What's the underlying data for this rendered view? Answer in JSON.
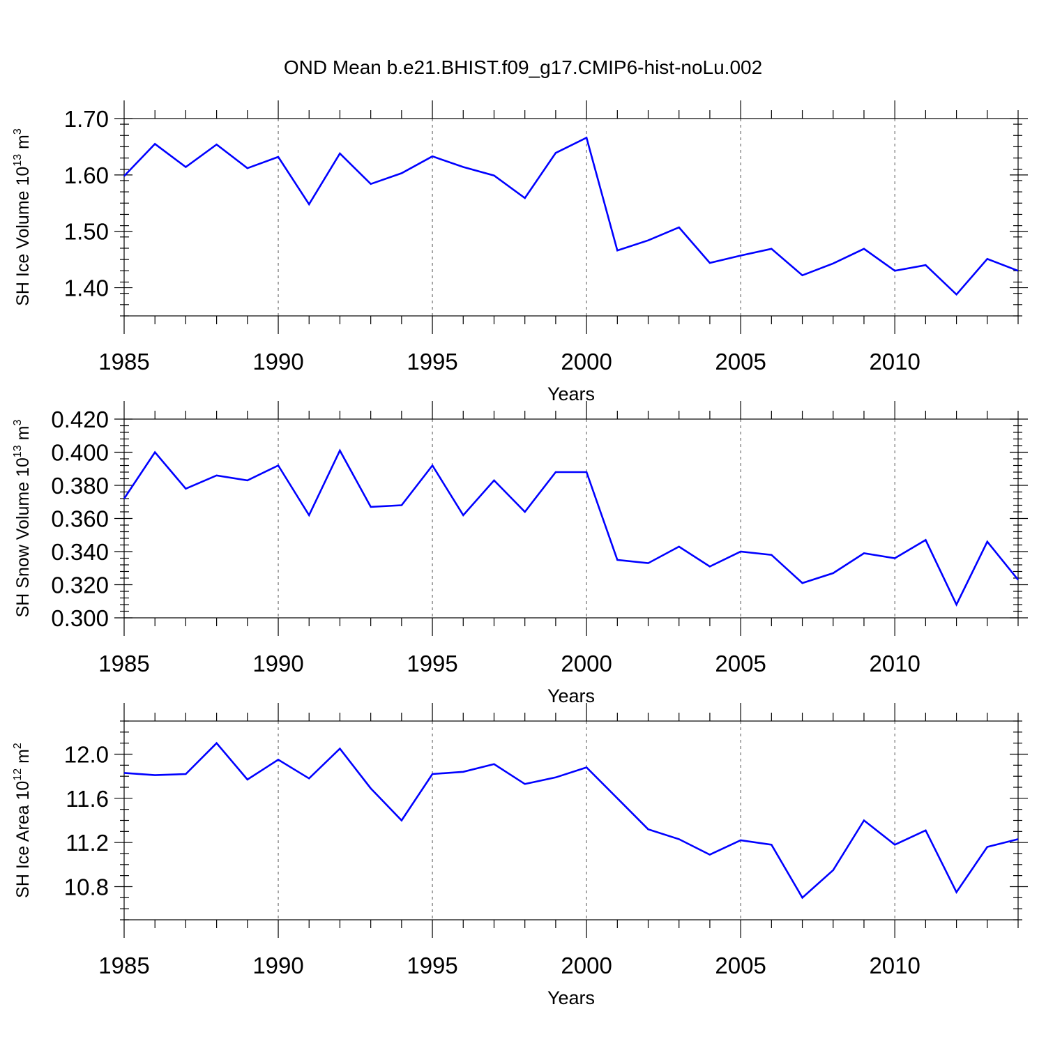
{
  "title": "OND Mean b.e21.BHIST.f09_g17.CMIP6-hist-noLu.002",
  "line_color": "#0000ff",
  "chart_data": [
    {
      "type": "line",
      "name": "ice-volume",
      "ylabel": {
        "text": "SH Ice Volume 10",
        "sup1": "13",
        "unit": " m",
        "sup2": "3"
      },
      "xlabel": "Years",
      "xlim": [
        1985,
        2014
      ],
      "ylim": [
        1.35,
        1.7
      ],
      "yticks": [
        1.4,
        1.5,
        1.6,
        1.7
      ],
      "ytick_labels": [
        "1.40",
        "1.50",
        "1.60",
        "1.70"
      ],
      "ytick_minor": 0.02,
      "xticks": [
        1985,
        1990,
        1995,
        2000,
        2005,
        2010
      ],
      "xtick_labels": [
        "1985",
        "1990",
        "1995",
        "2000",
        "2005",
        "2010"
      ],
      "grid": "vertical dashed at major x ticks",
      "x": [
        1985,
        1986,
        1987,
        1988,
        1989,
        1990,
        1991,
        1992,
        1993,
        1994,
        1995,
        1996,
        1997,
        1998,
        1999,
        2000,
        2001,
        2002,
        2003,
        2004,
        2005,
        2006,
        2007,
        2008,
        2009,
        2010,
        2011,
        2012,
        2013,
        2014
      ],
      "values": [
        1.598,
        1.655,
        1.614,
        1.654,
        1.612,
        1.632,
        1.548,
        1.638,
        1.584,
        1.603,
        1.633,
        1.614,
        1.599,
        1.559,
        1.639,
        1.666,
        1.466,
        1.484,
        1.507,
        1.444,
        1.457,
        1.469,
        1.422,
        1.443,
        1.469,
        1.43,
        1.44,
        1.388,
        1.451,
        1.43
      ]
    },
    {
      "type": "line",
      "name": "snow-volume",
      "ylabel": {
        "text": "SH Snow Volume 10",
        "sup1": "13",
        "unit": " m",
        "sup2": "3"
      },
      "xlabel": "Years",
      "xlim": [
        1985,
        2014
      ],
      "ylim": [
        0.3,
        0.42
      ],
      "yticks": [
        0.3,
        0.32,
        0.34,
        0.36,
        0.38,
        0.4,
        0.42
      ],
      "ytick_labels": [
        "0.300",
        "0.320",
        "0.340",
        "0.360",
        "0.380",
        "0.400",
        "0.420"
      ],
      "ytick_minor": 0.004,
      "xticks": [
        1985,
        1990,
        1995,
        2000,
        2005,
        2010
      ],
      "xtick_labels": [
        "1985",
        "1990",
        "1995",
        "2000",
        "2005",
        "2010"
      ],
      "grid": "vertical dashed at major x ticks",
      "x": [
        1985,
        1986,
        1987,
        1988,
        1989,
        1990,
        1991,
        1992,
        1993,
        1994,
        1995,
        1996,
        1997,
        1998,
        1999,
        2000,
        2001,
        2002,
        2003,
        2004,
        2005,
        2006,
        2007,
        2008,
        2009,
        2010,
        2011,
        2012,
        2013,
        2014
      ],
      "values": [
        0.372,
        0.4,
        0.378,
        0.386,
        0.383,
        0.392,
        0.362,
        0.401,
        0.367,
        0.368,
        0.392,
        0.362,
        0.383,
        0.364,
        0.388,
        0.388,
        0.335,
        0.333,
        0.343,
        0.331,
        0.34,
        0.338,
        0.321,
        0.327,
        0.339,
        0.336,
        0.347,
        0.308,
        0.346,
        0.323
      ]
    },
    {
      "type": "line",
      "name": "ice-area",
      "ylabel": {
        "text": "SH Ice Area 10",
        "sup1": "12",
        "unit": " m",
        "sup2": "2"
      },
      "xlabel": "Years",
      "xlim": [
        1985,
        2014
      ],
      "ylim": [
        10.5,
        12.3
      ],
      "yticks": [
        10.8,
        11.2,
        11.6,
        12.0
      ],
      "ytick_labels": [
        "10.8",
        "11.2",
        "11.6",
        "12.0"
      ],
      "ytick_minor": 0.1,
      "xticks": [
        1985,
        1990,
        1995,
        2000,
        2005,
        2010
      ],
      "xtick_labels": [
        "1985",
        "1990",
        "1995",
        "2000",
        "2005",
        "2010"
      ],
      "grid": "vertical dashed at major x ticks",
      "x": [
        1985,
        1986,
        1987,
        1988,
        1989,
        1990,
        1991,
        1992,
        1993,
        1994,
        1995,
        1996,
        1997,
        1998,
        1999,
        2000,
        2001,
        2002,
        2003,
        2004,
        2005,
        2006,
        2007,
        2008,
        2009,
        2010,
        2011,
        2012,
        2013,
        2014
      ],
      "values": [
        11.83,
        11.81,
        11.82,
        12.1,
        11.77,
        11.95,
        11.78,
        12.05,
        11.69,
        11.4,
        11.82,
        11.84,
        11.91,
        11.73,
        11.79,
        11.88,
        11.6,
        11.32,
        11.23,
        11.09,
        11.22,
        11.18,
        10.7,
        10.95,
        11.4,
        11.18,
        11.31,
        10.75,
        11.16,
        11.23
      ]
    }
  ]
}
